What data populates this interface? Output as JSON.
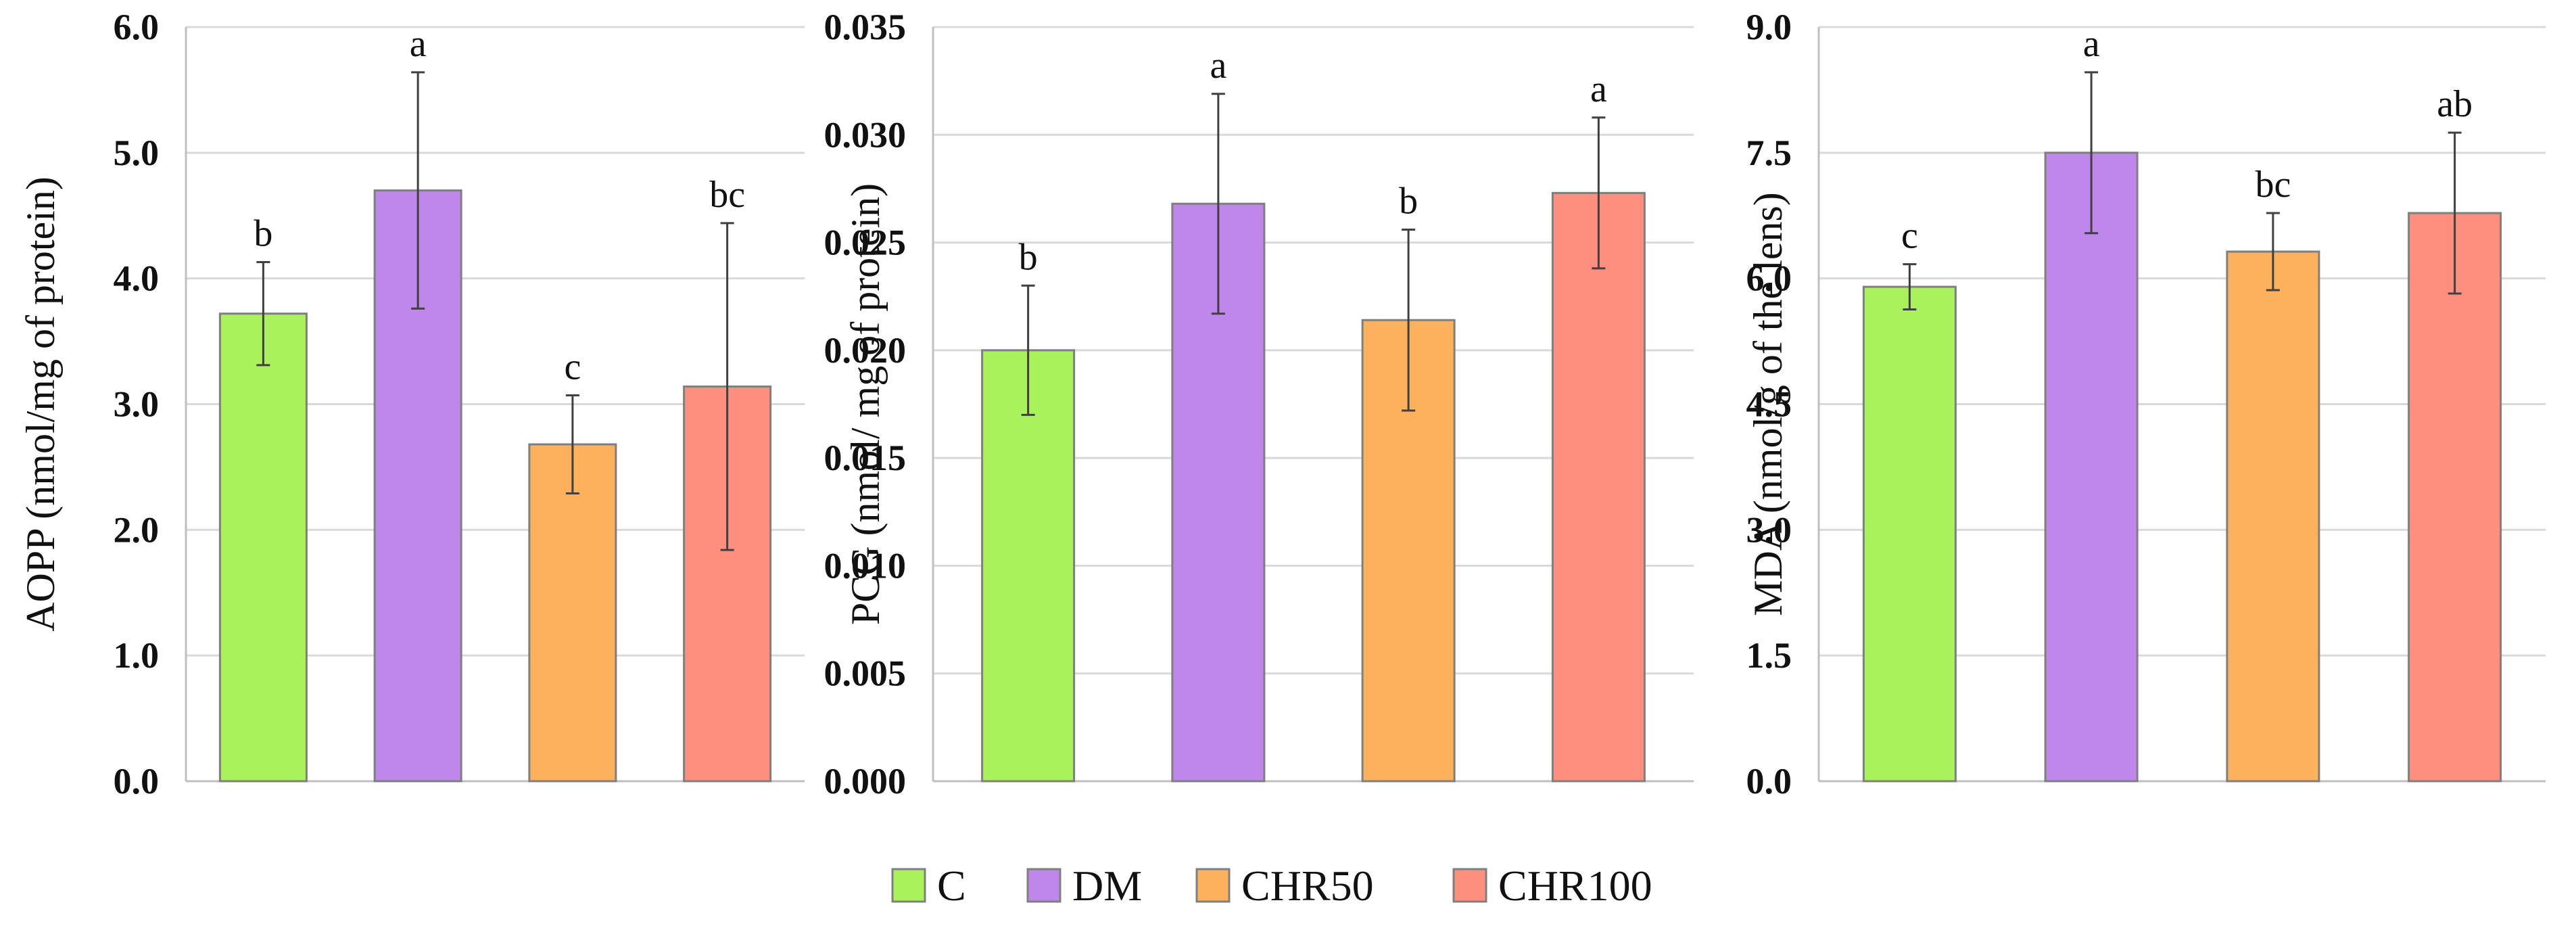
{
  "chart_data": [
    {
      "type": "bar",
      "categories": [
        "C",
        "DM",
        "CHR50",
        "CHR100"
      ],
      "values": [
        3.72,
        4.7,
        2.68,
        3.14
      ],
      "errors": [
        0.41,
        0.94,
        0.39,
        1.3
      ],
      "significance": [
        "b",
        "a",
        "c",
        "bc"
      ],
      "ylabel": "AOPP (nmol/mg of protein)",
      "ylim": [
        0,
        6
      ],
      "yticks": [
        "0.0",
        "1.0",
        "2.0",
        "3.0",
        "4.0",
        "5.0",
        "6.0"
      ],
      "grid": true
    },
    {
      "type": "bar",
      "categories": [
        "C",
        "DM",
        "CHR50",
        "CHR100"
      ],
      "values": [
        0.02,
        0.0268,
        0.0214,
        0.0273
      ],
      "errors": [
        0.003,
        0.0051,
        0.0042,
        0.0035
      ],
      "significance": [
        "b",
        "a",
        "b",
        "a"
      ],
      "ylabel": "PCG (nmol/ mg of protein)",
      "ylim": [
        0,
        0.035
      ],
      "yticks": [
        "0.000",
        "0.005",
        "0.010",
        "0.015",
        "0.020",
        "0.025",
        "0.030",
        "0.035"
      ],
      "grid": true
    },
    {
      "type": "bar",
      "categories": [
        "C",
        "DM",
        "CHR50",
        "CHR100"
      ],
      "values": [
        5.9,
        7.5,
        6.32,
        6.78
      ],
      "errors": [
        0.27,
        0.96,
        0.46,
        0.96
      ],
      "significance": [
        "c",
        "a",
        "bc",
        "ab"
      ],
      "ylabel": "MDA (nmol/g of the lens)",
      "ylim": [
        0,
        9
      ],
      "yticks": [
        "0.0",
        "1.5",
        "3.0",
        "4.5",
        "6.0",
        "7.5",
        "9.0"
      ],
      "grid": true
    }
  ],
  "legend": {
    "position": "bottom-center",
    "items": [
      {
        "label": "C",
        "color": "#a9f25c"
      },
      {
        "label": "DM",
        "color": "#bf87ea"
      },
      {
        "label": "CHR50",
        "color": "#fdb15d"
      },
      {
        "label": "CHR100",
        "color": "#fe8f7f"
      }
    ]
  }
}
